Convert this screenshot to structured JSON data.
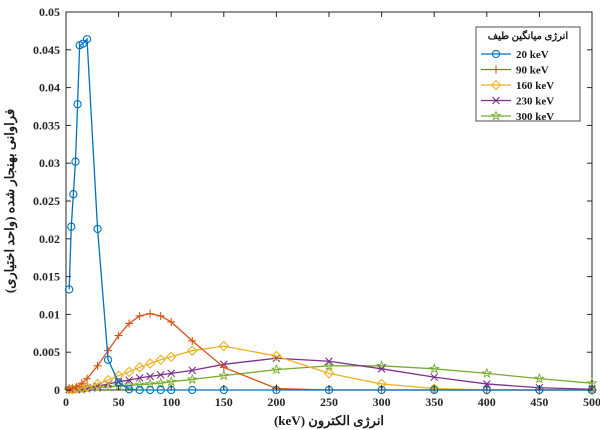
{
  "chart_data": {
    "type": "line",
    "title": "",
    "xlabel": "انرژی الکترون (keV)",
    "ylabel": "فراوانی بهنجار شده (واحد اختیاری)",
    "xlim": [
      0,
      500
    ],
    "ylim": [
      0,
      0.05
    ],
    "x_ticks": [
      "0",
      "50",
      "100",
      "150",
      "200",
      "250",
      "300",
      "350",
      "400",
      "450",
      "500"
    ],
    "y_ticks": [
      "0",
      "0.005",
      "0.01",
      "0.015",
      "0.02",
      "0.025",
      "0.03",
      "0.035",
      "0.04",
      "0.045",
      "0.05"
    ],
    "grid": false,
    "legend": {
      "title": "انرژی میانگین طیف",
      "position": "top-right"
    },
    "series": [
      {
        "name": "20 keV",
        "color": "#0072BD",
        "marker": "circle",
        "x": [
          3,
          5,
          7,
          9,
          11,
          13,
          16,
          20,
          30,
          40,
          50,
          60,
          70,
          80,
          90,
          100,
          120,
          150,
          200,
          250,
          300,
          350,
          400,
          450,
          500
        ],
        "y": [
          0.0133,
          0.0216,
          0.0259,
          0.0302,
          0.0378,
          0.0456,
          0.0458,
          0.0464,
          0.0213,
          0.004,
          0.001,
          0.0001,
          0,
          0,
          0,
          0,
          0,
          0,
          0,
          0,
          0,
          0,
          0,
          0,
          0
        ]
      },
      {
        "name": "90 keV",
        "color": "#D95319",
        "marker": "plus",
        "x": [
          3,
          6,
          10,
          15,
          20,
          30,
          40,
          50,
          60,
          70,
          80,
          90,
          100,
          120,
          150,
          200,
          250,
          300,
          350,
          400,
          450,
          500
        ],
        "y": [
          0.0001,
          0.0002,
          0.0004,
          0.0009,
          0.0015,
          0.0032,
          0.0052,
          0.0072,
          0.0088,
          0.0098,
          0.0101,
          0.0098,
          0.009,
          0.0065,
          0.003,
          0.0002,
          0,
          0,
          0,
          0,
          0,
          0
        ]
      },
      {
        "name": "160 keV",
        "color": "#EDB120",
        "marker": "diamond",
        "x": [
          3,
          6,
          10,
          15,
          20,
          30,
          40,
          50,
          60,
          70,
          80,
          90,
          100,
          120,
          150,
          200,
          250,
          300,
          350,
          400,
          450,
          500
        ],
        "y": [
          0.0001,
          0.0001,
          0.0002,
          0.0003,
          0.0004,
          0.0008,
          0.0013,
          0.0019,
          0.0024,
          0.003,
          0.0035,
          0.004,
          0.0044,
          0.0052,
          0.0058,
          0.0045,
          0.0022,
          0.0008,
          0.0002,
          0,
          0,
          0
        ]
      },
      {
        "name": "230 keV",
        "color": "#7E2F8E",
        "marker": "x",
        "x": [
          3,
          6,
          10,
          15,
          20,
          30,
          40,
          50,
          60,
          70,
          80,
          90,
          100,
          120,
          150,
          200,
          250,
          300,
          350,
          400,
          450,
          500
        ],
        "y": [
          0.0001,
          0.0001,
          0.0001,
          0.0002,
          0.0003,
          0.0005,
          0.0008,
          0.0011,
          0.0013,
          0.0016,
          0.0018,
          0.002,
          0.0022,
          0.0026,
          0.0034,
          0.0042,
          0.0038,
          0.0028,
          0.0017,
          0.0008,
          0.0003,
          0.0001
        ]
      },
      {
        "name": "300 keV",
        "color": "#77AC30",
        "marker": "star",
        "x": [
          3,
          6,
          10,
          15,
          20,
          30,
          40,
          50,
          60,
          70,
          80,
          90,
          100,
          120,
          150,
          200,
          250,
          300,
          350,
          400,
          450,
          500
        ],
        "y": [
          0.0001,
          0.0001,
          0.0001,
          0.0001,
          0.0002,
          0.0003,
          0.0004,
          0.0005,
          0.0006,
          0.0007,
          0.0008,
          0.0009,
          0.0011,
          0.0014,
          0.0019,
          0.0027,
          0.0032,
          0.0032,
          0.0028,
          0.0022,
          0.0015,
          0.0009
        ]
      }
    ]
  }
}
